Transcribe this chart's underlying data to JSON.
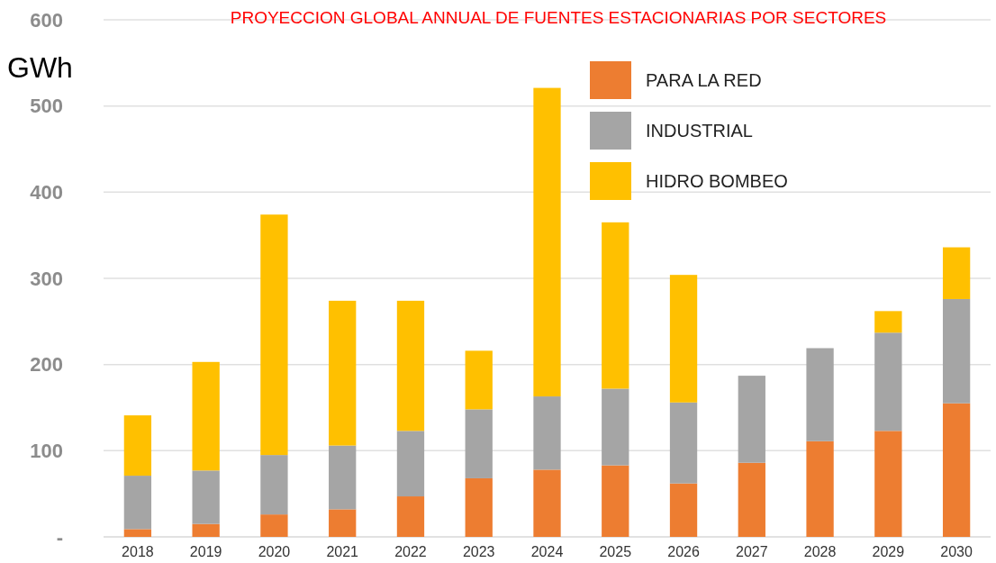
{
  "chart_data": {
    "type": "bar",
    "title": "PROYECCION GLOBAL ANNUAL DE FUENTES ESTACIONARIAS POR SECTORES",
    "ylabel": "GWh",
    "categories": [
      "2018",
      "2019",
      "2020",
      "2021",
      "2022",
      "2023",
      "2024",
      "2025",
      "2026",
      "2027",
      "2028",
      "2029",
      "2030"
    ],
    "stacked": true,
    "series": [
      {
        "name": "PARA LA RED",
        "color": "#ed7d31",
        "values": [
          9,
          15,
          26,
          32,
          47,
          68,
          78,
          83,
          62,
          86,
          111,
          123,
          155
        ]
      },
      {
        "name": "INDUSTRIAL",
        "color": "#a5a5a5",
        "values": [
          62,
          62,
          69,
          74,
          76,
          80,
          85,
          89,
          94,
          101,
          108,
          114,
          121
        ]
      },
      {
        "name": "HIDRO BOMBEO",
        "color": "#ffc000",
        "values": [
          70,
          126,
          279,
          168,
          151,
          68,
          358,
          193,
          148,
          0,
          0,
          25,
          60
        ]
      }
    ],
    "ylim": [
      0,
      600
    ],
    "yticks": [
      {
        "value": 0,
        "label": "-"
      },
      100,
      200,
      300,
      400,
      500,
      600
    ],
    "grid": "y",
    "legend": "top right"
  }
}
